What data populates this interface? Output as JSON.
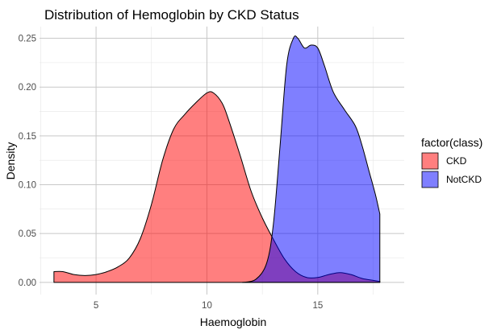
{
  "chart_data": {
    "type": "area",
    "title": "Distribution of Hemoglobin by CKD Status",
    "xlabel": "Haemoglobin",
    "ylabel": "Density",
    "xlim": [
      2.45,
      18.9
    ],
    "ylim": [
      -0.0125,
      0.262
    ],
    "x_ticks": [
      5,
      10,
      15
    ],
    "y_ticks": [
      0.0,
      0.05,
      0.1,
      0.15,
      0.2,
      0.25
    ],
    "y_tick_labels": [
      "0.00",
      "0.05",
      "0.10",
      "0.15",
      "0.20",
      "0.25"
    ],
    "x_tick_labels": [
      "5",
      "10",
      "15"
    ],
    "grid": true,
    "legend": {
      "title": "factor(class)",
      "position": "right"
    },
    "series": [
      {
        "name": "CKD",
        "color": "#FF0000",
        "alpha": 0.5,
        "points": [
          [
            3.1,
            0.011
          ],
          [
            3.5,
            0.011
          ],
          [
            4.0,
            0.008
          ],
          [
            4.5,
            0.007
          ],
          [
            5.0,
            0.008
          ],
          [
            5.5,
            0.011
          ],
          [
            6.0,
            0.016
          ],
          [
            6.5,
            0.025
          ],
          [
            7.0,
            0.045
          ],
          [
            7.5,
            0.08
          ],
          [
            8.0,
            0.125
          ],
          [
            8.5,
            0.157
          ],
          [
            9.0,
            0.172
          ],
          [
            9.5,
            0.184
          ],
          [
            10.0,
            0.194
          ],
          [
            10.3,
            0.194
          ],
          [
            10.7,
            0.183
          ],
          [
            11.0,
            0.165
          ],
          [
            11.5,
            0.13
          ],
          [
            12.0,
            0.093
          ],
          [
            12.5,
            0.066
          ],
          [
            13.0,
            0.044
          ],
          [
            13.5,
            0.024
          ],
          [
            14.0,
            0.011
          ],
          [
            14.5,
            0.005
          ],
          [
            15.0,
            0.005
          ],
          [
            15.5,
            0.008
          ],
          [
            16.0,
            0.01
          ],
          [
            16.5,
            0.008
          ],
          [
            17.0,
            0.004
          ],
          [
            17.5,
            0.002
          ],
          [
            17.8,
            0.001
          ]
        ]
      },
      {
        "name": "NotCKD",
        "color": "#0000FF",
        "alpha": 0.5,
        "points": [
          [
            11.6,
            0.0
          ],
          [
            12.2,
            0.003
          ],
          [
            12.7,
            0.02
          ],
          [
            13.0,
            0.06
          ],
          [
            13.3,
            0.14
          ],
          [
            13.6,
            0.223
          ],
          [
            13.9,
            0.25
          ],
          [
            14.1,
            0.25
          ],
          [
            14.4,
            0.24
          ],
          [
            14.7,
            0.243
          ],
          [
            15.0,
            0.24
          ],
          [
            15.3,
            0.222
          ],
          [
            15.7,
            0.195
          ],
          [
            16.2,
            0.177
          ],
          [
            16.7,
            0.16
          ],
          [
            17.0,
            0.14
          ],
          [
            17.3,
            0.115
          ],
          [
            17.6,
            0.09
          ],
          [
            17.8,
            0.07
          ]
        ]
      }
    ]
  }
}
